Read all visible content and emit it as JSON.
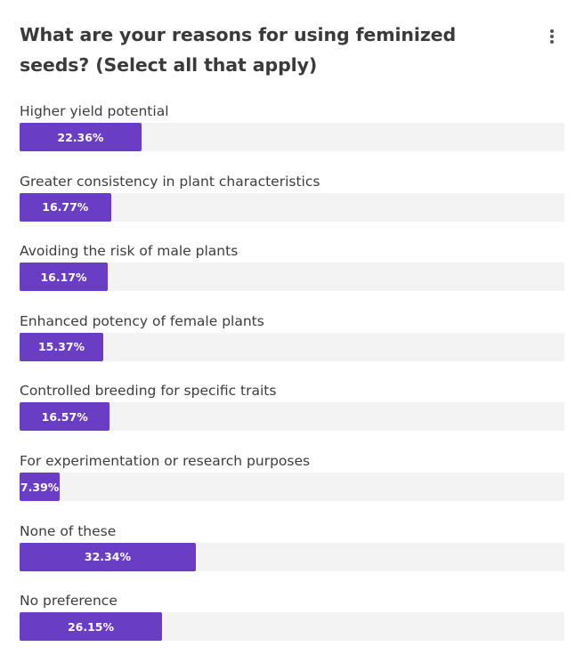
{
  "title": "What are your reasons for using feminized seeds? (Select all that apply)",
  "menu_icon": "more-vertical-icon",
  "colors": {
    "bar": "#6a3ec4",
    "track": "#f3f3f3",
    "text": "#3d3d3d"
  },
  "chart_data": {
    "type": "bar",
    "orientation": "horizontal",
    "title": "What are your reasons for using feminized seeds? (Select all that apply)",
    "categories": [
      "Higher yield potential",
      "Greater consistency in plant characteristics",
      "Avoiding the risk of male plants",
      "Enhanced potency of female plants",
      "Controlled breeding for specific traits",
      "For experimentation or research purposes",
      "None of these",
      "No preference"
    ],
    "values": [
      22.36,
      16.77,
      16.17,
      15.37,
      16.57,
      7.39,
      32.34,
      26.15
    ],
    "value_labels": [
      "22.36%",
      "16.77%",
      "16.17%",
      "15.37%",
      "16.57%",
      "7.39%",
      "32.34%",
      "26.15%"
    ],
    "xlim": [
      0,
      100
    ],
    "unit": "%"
  }
}
